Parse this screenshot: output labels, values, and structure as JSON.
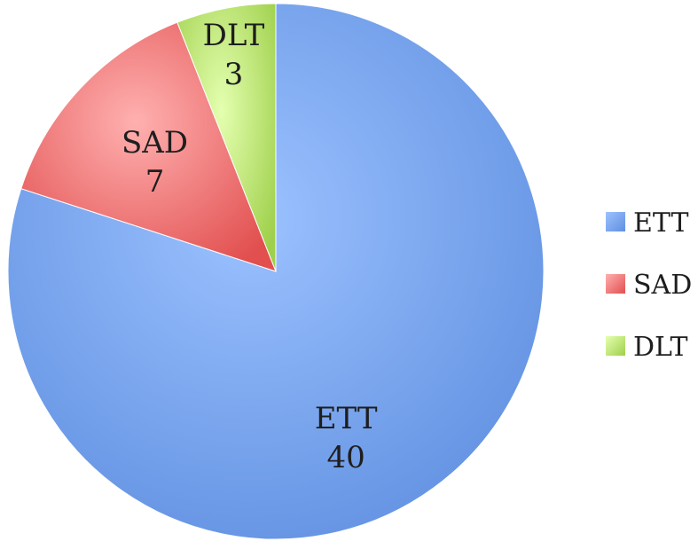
{
  "chart_data": {
    "type": "pie",
    "categories": [
      "ETT",
      "SAD",
      "DLT"
    ],
    "values": [
      40,
      7,
      3
    ],
    "value_labels": [
      "40",
      "7",
      "3"
    ],
    "colors": [
      "#6f9ee6",
      "#e65a5a",
      "#a8d65a"
    ],
    "legend": {
      "placement": "right",
      "entries": [
        "ETT",
        "SAD",
        "DLT"
      ]
    }
  }
}
